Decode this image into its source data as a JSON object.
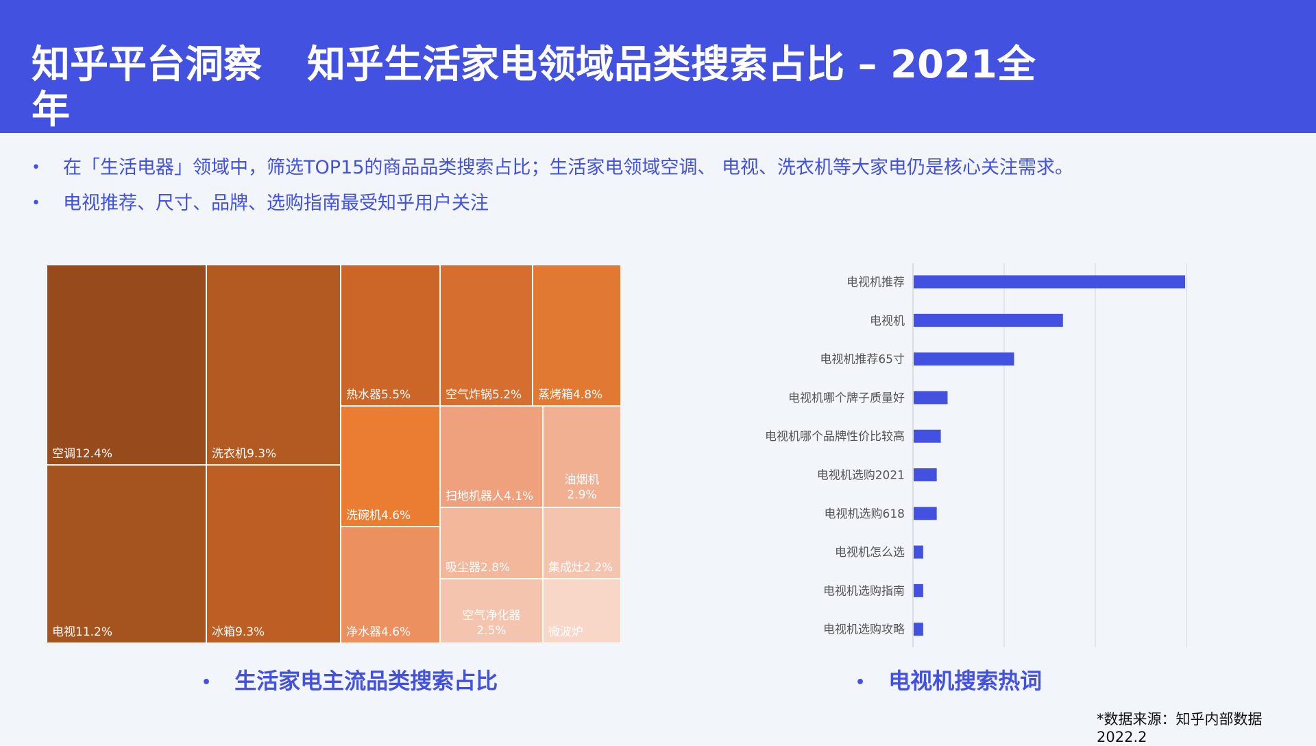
{
  "header": {
    "title_left": "知乎平台洞察",
    "title_right": "知乎生活家电领域品类搜索占比 – 2021全年"
  },
  "bullets": [
    "在「生活电器」领域中，筛选TOP15的商品品类搜索占比；生活家电领域空调、 电视、洗衣机等大家电仍是核心关注需求。",
    "电视推荐、尺寸、品牌、选购指南最受知乎用户关注"
  ],
  "colors": {
    "header_bg": "#4251e0",
    "accent": "#4251e0",
    "bar": "#4251e0",
    "page_bg": "#f2f5fa"
  },
  "captions": {
    "left": "生活家电主流品类搜索占比",
    "right": "电视机搜索热词"
  },
  "source": "*数据来源：知乎内部数据 2022.2",
  "chart_data": [
    {
      "type": "treemap",
      "title": "",
      "items": [
        {
          "label": "空调12.4%",
          "category": "空调",
          "value": 12.4,
          "color": "#974b1d"
        },
        {
          "label": "电视11.2%",
          "category": "电视",
          "value": 11.2,
          "color": "#a5541f"
        },
        {
          "label": "洗衣机9.3%",
          "category": "洗衣机",
          "value": 9.3,
          "color": "#b25a21"
        },
        {
          "label": "冰箱9.3%",
          "category": "冰箱",
          "value": 9.3,
          "color": "#bd5f24"
        },
        {
          "label": "热水器5.5%",
          "category": "热水器",
          "value": 5.5,
          "color": "#cb6628"
        },
        {
          "label": "洗碗机4.6%",
          "category": "洗碗机",
          "value": 4.6,
          "color": "#eb7d33"
        },
        {
          "label": "净水器4.6%",
          "category": "净水器",
          "value": 4.6,
          "color": "#ec9060"
        },
        {
          "label": "空气炸锅5.2%",
          "category": "空气炸锅",
          "value": 5.2,
          "color": "#d56e2f"
        },
        {
          "label": "蒸烤箱4.8%",
          "category": "蒸烤箱",
          "value": 4.8,
          "color": "#e27932"
        },
        {
          "label": "扫地机器人4.1%",
          "category": "扫地机器人",
          "value": 4.1,
          "color": "#efa07c"
        },
        {
          "label": "油烟机\n2.9%",
          "category": "油烟机",
          "value": 2.9,
          "color": "#f2b092"
        },
        {
          "label": "吸尘器2.8%",
          "category": "吸尘器",
          "value": 2.8,
          "color": "#f3b79c"
        },
        {
          "label": "集成灶2.2%",
          "category": "集成灶",
          "value": 2.2,
          "color": "#f5c4ae"
        },
        {
          "label": "空气净化器\n2.5%",
          "category": "空气净化器",
          "value": 2.5,
          "color": "#f5c4ae"
        },
        {
          "label": "微波炉",
          "category": "微波炉",
          "value": 2.0,
          "color": "#f8d6c8"
        }
      ]
    },
    {
      "type": "bar",
      "orientation": "horizontal",
      "title": "",
      "categories": [
        "电视机推荐",
        "电视机",
        "电视机推荐65寸",
        "电视机哪个牌子质量好",
        "电视机哪个品牌性价比较高",
        "电视机选购2021",
        "电视机选购618",
        "电视机怎么选",
        "电视机选购指南",
        "电视机选购攻略"
      ],
      "values": [
        100,
        55,
        37,
        12.5,
        10,
        8.5,
        8.5,
        3.5,
        3.5,
        3.5
      ],
      "xlim": [
        0,
        100
      ],
      "grid": true,
      "axis_ticks_visible": false
    }
  ]
}
